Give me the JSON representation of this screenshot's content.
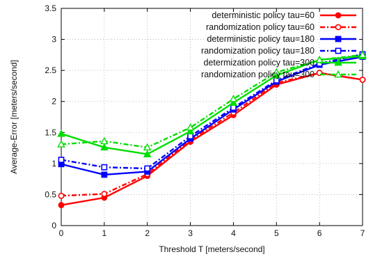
{
  "chart_data": {
    "type": "line",
    "xlabel": "Threshold T [meters/second]",
    "ylabel": "Average-Error [meters/second]",
    "xlim": [
      0,
      7
    ],
    "ylim": [
      0,
      3.5
    ],
    "x_ticks": [
      "0",
      "1",
      "2",
      "3",
      "4",
      "5",
      "6",
      "7"
    ],
    "y_ticks": [
      "0",
      "0.5",
      "1",
      "1.5",
      "2",
      "2.5",
      "3",
      "3.5"
    ],
    "grid": true,
    "legend_position": "top-center",
    "x": [
      0,
      1,
      2,
      3,
      4,
      5,
      6,
      7
    ],
    "series": [
      {
        "name": "deterministic policy  tau=60",
        "color": "#ff0000",
        "dash": "solid",
        "marker": "circle",
        "values": [
          0.33,
          0.45,
          0.8,
          1.35,
          1.78,
          2.27,
          2.46,
          2.35
        ]
      },
      {
        "name": "randomization policy   tau=60",
        "color": "#ff0000",
        "dash": "dashdot",
        "marker": "circle-open",
        "values": [
          0.48,
          0.51,
          0.83,
          1.38,
          1.82,
          2.3,
          2.46,
          2.35
        ]
      },
      {
        "name": "deterministic policy tau=180",
        "color": "#0000ff",
        "dash": "solid",
        "marker": "square",
        "values": [
          0.99,
          0.82,
          0.87,
          1.4,
          1.87,
          2.32,
          2.59,
          2.72
        ]
      },
      {
        "name": "randomization policy tau=180",
        "color": "#0000ff",
        "dash": "dashdot",
        "marker": "square-open",
        "values": [
          1.06,
          0.94,
          0.92,
          1.44,
          1.9,
          2.34,
          2.61,
          2.76
        ]
      },
      {
        "name": "determization policy tau=300",
        "color": "#00dd00",
        "dash": "solid",
        "marker": "triangle",
        "values": [
          1.48,
          1.26,
          1.15,
          1.52,
          1.98,
          2.42,
          2.67,
          2.73
        ]
      },
      {
        "name": "randomization policy tau=300",
        "color": "#00dd00",
        "dash": "dashdot",
        "marker": "triangle-open",
        "values": [
          1.31,
          1.36,
          1.26,
          1.58,
          2.04,
          2.47,
          2.67,
          2.75
        ]
      }
    ]
  }
}
